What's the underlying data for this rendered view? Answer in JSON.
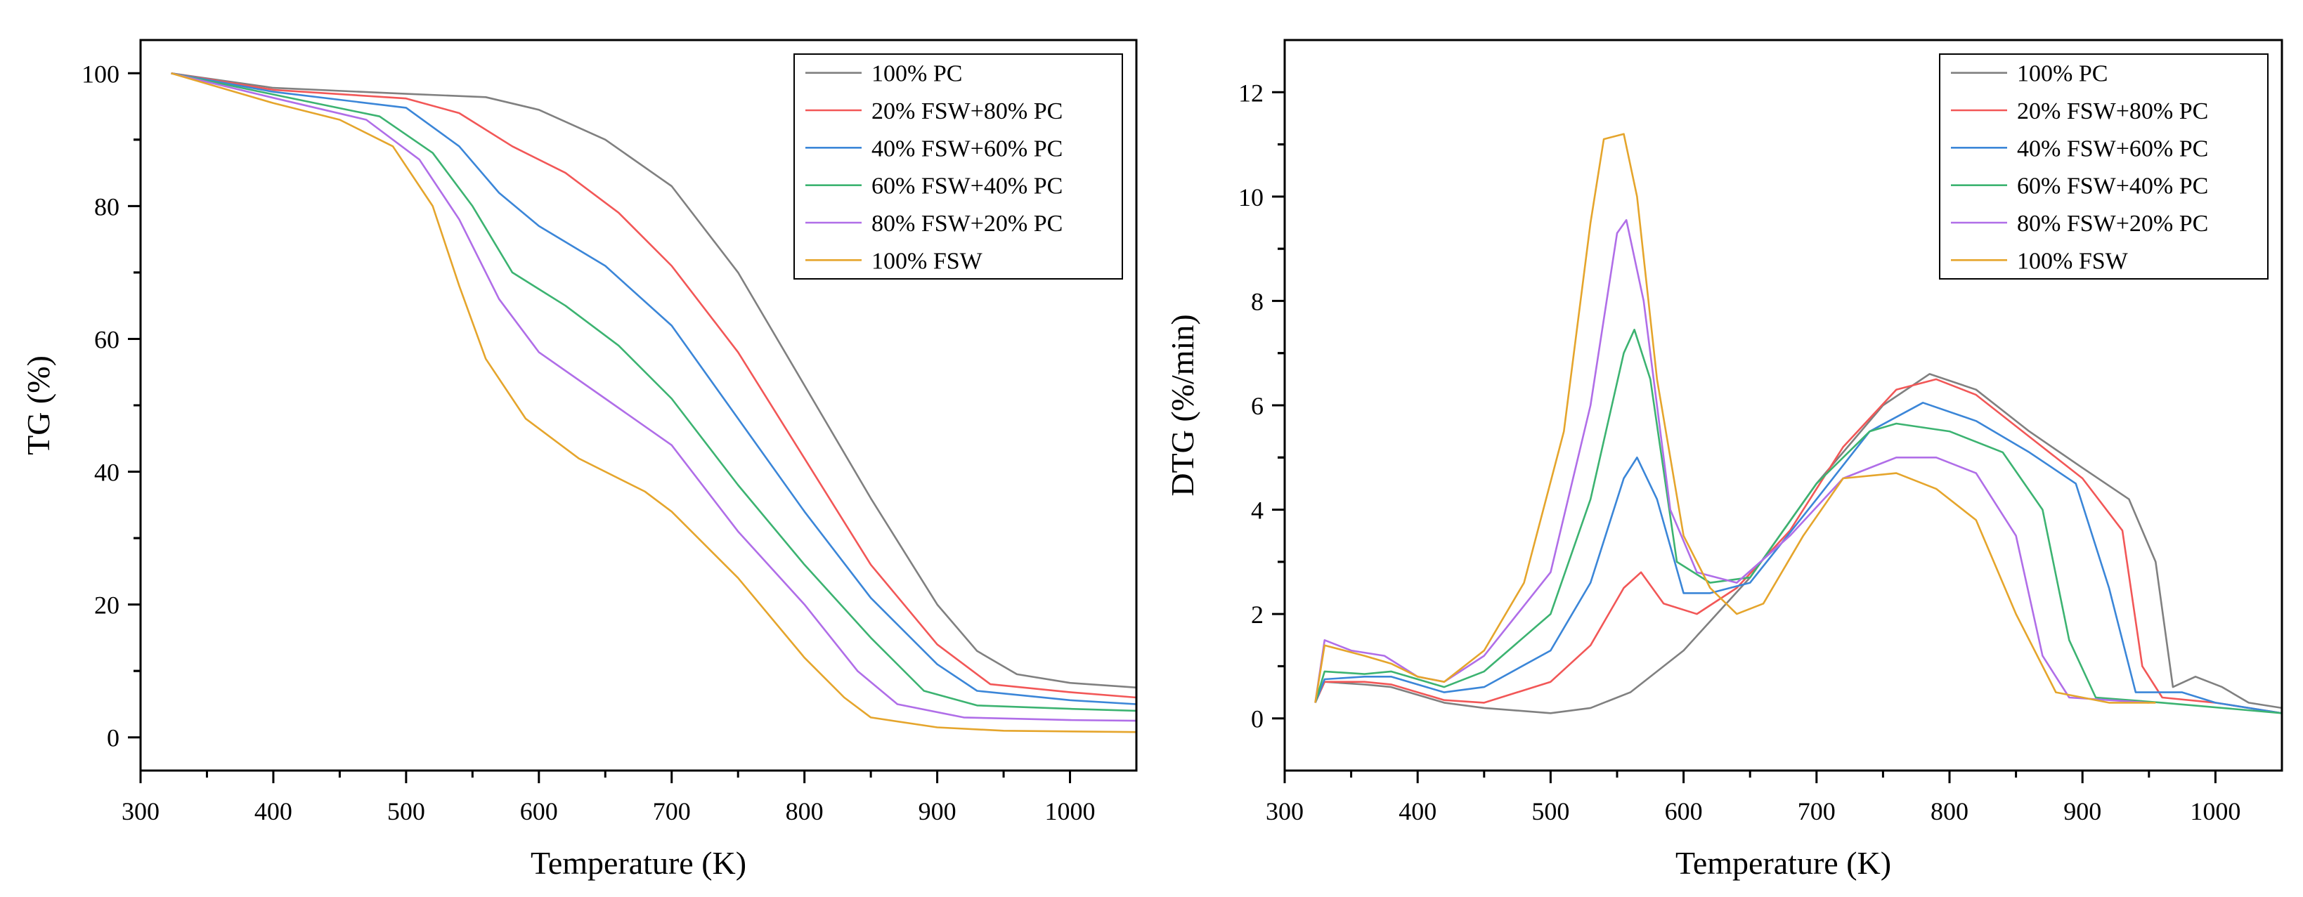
{
  "chart_data": [
    {
      "type": "line",
      "xlabel": "Temperature (K)",
      "ylabel": "TG (%)",
      "xlim": [
        300,
        1050
      ],
      "ylim": [
        -5,
        105
      ],
      "xticks": [
        300,
        400,
        500,
        600,
        700,
        800,
        900,
        1000
      ],
      "yticks": [
        0,
        20,
        40,
        60,
        80,
        100
      ],
      "legend_position": "top-right",
      "series": [
        {
          "name": "100% PC",
          "color": "#808080",
          "points": [
            [
              323,
              100
            ],
            [
              400,
              97.8
            ],
            [
              500,
              96.9
            ],
            [
              560,
              96.4
            ],
            [
              600,
              94.5
            ],
            [
              650,
              90
            ],
            [
              700,
              83
            ],
            [
              750,
              70
            ],
            [
              800,
              53
            ],
            [
              850,
              36
            ],
            [
              900,
              20
            ],
            [
              930,
              13
            ],
            [
              960,
              9.5
            ],
            [
              1000,
              8.2
            ],
            [
              1050,
              7.5
            ]
          ]
        },
        {
          "name": "20% FSW+80% PC",
          "color": "#f25757",
          "points": [
            [
              323,
              100
            ],
            [
              400,
              97.5
            ],
            [
              500,
              96.2
            ],
            [
              540,
              94
            ],
            [
              580,
              89
            ],
            [
              620,
              85
            ],
            [
              660,
              79
            ],
            [
              700,
              71
            ],
            [
              750,
              58
            ],
            [
              800,
              42
            ],
            [
              850,
              26
            ],
            [
              900,
              14
            ],
            [
              940,
              8
            ],
            [
              1000,
              6.8
            ],
            [
              1050,
              6
            ]
          ]
        },
        {
          "name": "40% FSW+60% PC",
          "color": "#3b86d8",
          "points": [
            [
              323,
              100
            ],
            [
              400,
              97.2
            ],
            [
              500,
              94.8
            ],
            [
              540,
              89
            ],
            [
              570,
              82
            ],
            [
              600,
              77
            ],
            [
              650,
              71
            ],
            [
              700,
              62
            ],
            [
              750,
              48
            ],
            [
              800,
              34
            ],
            [
              850,
              21
            ],
            [
              900,
              11
            ],
            [
              930,
              7
            ],
            [
              1000,
              5.6
            ],
            [
              1050,
              5
            ]
          ]
        },
        {
          "name": "60% FSW+40% PC",
          "color": "#3cb371",
          "points": [
            [
              323,
              100
            ],
            [
              400,
              96.8
            ],
            [
              480,
              93.5
            ],
            [
              520,
              88
            ],
            [
              550,
              80
            ],
            [
              580,
              70
            ],
            [
              620,
              65
            ],
            [
              660,
              59
            ],
            [
              700,
              51
            ],
            [
              750,
              38
            ],
            [
              800,
              26
            ],
            [
              850,
              15
            ],
            [
              890,
              7
            ],
            [
              930,
              4.8
            ],
            [
              1000,
              4.3
            ],
            [
              1050,
              4
            ]
          ]
        },
        {
          "name": "80% FSW+20% PC",
          "color": "#b06ee8",
          "points": [
            [
              323,
              100
            ],
            [
              400,
              96.3
            ],
            [
              470,
              93
            ],
            [
              510,
              87
            ],
            [
              540,
              78
            ],
            [
              570,
              66
            ],
            [
              600,
              58
            ],
            [
              650,
              51
            ],
            [
              700,
              44
            ],
            [
              750,
              31
            ],
            [
              800,
              20
            ],
            [
              840,
              10
            ],
            [
              870,
              5
            ],
            [
              920,
              3
            ],
            [
              1000,
              2.6
            ],
            [
              1050,
              2.5
            ]
          ]
        },
        {
          "name": "100% FSW",
          "color": "#e5a52c",
          "points": [
            [
              323,
              100
            ],
            [
              400,
              95.5
            ],
            [
              450,
              93
            ],
            [
              490,
              89
            ],
            [
              520,
              80
            ],
            [
              540,
              68
            ],
            [
              560,
              57
            ],
            [
              590,
              48
            ],
            [
              630,
              42
            ],
            [
              680,
              37
            ],
            [
              700,
              34
            ],
            [
              750,
              24
            ],
            [
              800,
              12
            ],
            [
              830,
              6
            ],
            [
              850,
              3
            ],
            [
              900,
              1.5
            ],
            [
              950,
              1
            ],
            [
              1050,
              0.8
            ]
          ]
        }
      ]
    },
    {
      "type": "line",
      "xlabel": "Temperature (K)",
      "ylabel": "DTG (%/min)",
      "xlim": [
        300,
        1050
      ],
      "ylim": [
        -1,
        13
      ],
      "xticks": [
        300,
        400,
        500,
        600,
        700,
        800,
        900,
        1000
      ],
      "yticks": [
        0,
        2,
        4,
        6,
        8,
        10,
        12
      ],
      "legend_position": "top-right",
      "series": [
        {
          "name": "100% PC",
          "color": "#808080",
          "points": [
            [
              323,
              0.3
            ],
            [
              330,
              0.7
            ],
            [
              360,
              0.65
            ],
            [
              380,
              0.6
            ],
            [
              420,
              0.3
            ],
            [
              450,
              0.2
            ],
            [
              500,
              0.1
            ],
            [
              530,
              0.2
            ],
            [
              560,
              0.5
            ],
            [
              600,
              1.3
            ],
            [
              650,
              2.7
            ],
            [
              700,
              4.5
            ],
            [
              750,
              6.0
            ],
            [
              785,
              6.6
            ],
            [
              820,
              6.3
            ],
            [
              860,
              5.5
            ],
            [
              900,
              4.8
            ],
            [
              935,
              4.2
            ],
            [
              955,
              3.0
            ],
            [
              968,
              0.6
            ],
            [
              985,
              0.8
            ],
            [
              1005,
              0.6
            ],
            [
              1025,
              0.3
            ],
            [
              1050,
              0.2
            ]
          ]
        },
        {
          "name": "20% FSW+80% PC",
          "color": "#f25757",
          "points": [
            [
              323,
              0.3
            ],
            [
              330,
              0.7
            ],
            [
              360,
              0.7
            ],
            [
              380,
              0.65
            ],
            [
              420,
              0.35
            ],
            [
              450,
              0.3
            ],
            [
              500,
              0.7
            ],
            [
              530,
              1.4
            ],
            [
              555,
              2.5
            ],
            [
              568,
              2.8
            ],
            [
              585,
              2.2
            ],
            [
              610,
              2.0
            ],
            [
              640,
              2.5
            ],
            [
              680,
              3.6
            ],
            [
              720,
              5.2
            ],
            [
              760,
              6.3
            ],
            [
              790,
              6.5
            ],
            [
              820,
              6.2
            ],
            [
              860,
              5.4
            ],
            [
              900,
              4.6
            ],
            [
              930,
              3.6
            ],
            [
              945,
              1.0
            ],
            [
              960,
              0.4
            ],
            [
              1000,
              0.3
            ],
            [
              1050,
              0.1
            ]
          ]
        },
        {
          "name": "40% FSW+60% PC",
          "color": "#3b86d8",
          "points": [
            [
              323,
              0.3
            ],
            [
              330,
              0.75
            ],
            [
              360,
              0.8
            ],
            [
              380,
              0.8
            ],
            [
              420,
              0.5
            ],
            [
              450,
              0.6
            ],
            [
              500,
              1.3
            ],
            [
              530,
              2.6
            ],
            [
              555,
              4.6
            ],
            [
              565,
              5.0
            ],
            [
              580,
              4.2
            ],
            [
              600,
              2.4
            ],
            [
              620,
              2.4
            ],
            [
              650,
              2.6
            ],
            [
              700,
              4.2
            ],
            [
              740,
              5.5
            ],
            [
              780,
              6.05
            ],
            [
              820,
              5.7
            ],
            [
              860,
              5.1
            ],
            [
              895,
              4.5
            ],
            [
              920,
              2.5
            ],
            [
              940,
              0.5
            ],
            [
              975,
              0.5
            ],
            [
              1000,
              0.3
            ],
            [
              1050,
              0.1
            ]
          ]
        },
        {
          "name": "60% FSW+40% PC",
          "color": "#3cb371",
          "points": [
            [
              323,
              0.3
            ],
            [
              330,
              0.9
            ],
            [
              360,
              0.85
            ],
            [
              380,
              0.9
            ],
            [
              420,
              0.6
            ],
            [
              450,
              0.9
            ],
            [
              500,
              2.0
            ],
            [
              530,
              4.2
            ],
            [
              555,
              7.0
            ],
            [
              563,
              7.45
            ],
            [
              575,
              6.5
            ],
            [
              595,
              3.0
            ],
            [
              620,
              2.6
            ],
            [
              650,
              2.7
            ],
            [
              700,
              4.5
            ],
            [
              740,
              5.5
            ],
            [
              760,
              5.65
            ],
            [
              800,
              5.5
            ],
            [
              840,
              5.1
            ],
            [
              870,
              4.0
            ],
            [
              890,
              1.5
            ],
            [
              910,
              0.4
            ],
            [
              960,
              0.3
            ],
            [
              1050,
              0.1
            ]
          ]
        },
        {
          "name": "80% FSW+20% PC",
          "color": "#b06ee8",
          "points": [
            [
              323,
              0.3
            ],
            [
              330,
              1.5
            ],
            [
              350,
              1.3
            ],
            [
              375,
              1.2
            ],
            [
              400,
              0.8
            ],
            [
              420,
              0.7
            ],
            [
              450,
              1.2
            ],
            [
              500,
              2.8
            ],
            [
              530,
              6.0
            ],
            [
              550,
              9.3
            ],
            [
              557,
              9.55
            ],
            [
              570,
              8.0
            ],
            [
              590,
              4.0
            ],
            [
              610,
              2.8
            ],
            [
              640,
              2.6
            ],
            [
              680,
              3.5
            ],
            [
              720,
              4.6
            ],
            [
              760,
              5.0
            ],
            [
              790,
              5.0
            ],
            [
              820,
              4.7
            ],
            [
              850,
              3.5
            ],
            [
              870,
              1.2
            ],
            [
              890,
              0.4
            ],
            [
              950,
              0.3
            ]
          ]
        },
        {
          "name": "100% FSW",
          "color": "#e5a52c",
          "points": [
            [
              323,
              0.3
            ],
            [
              330,
              1.4
            ],
            [
              360,
              1.2
            ],
            [
              380,
              1.05
            ],
            [
              400,
              0.8
            ],
            [
              420,
              0.7
            ],
            [
              450,
              1.3
            ],
            [
              480,
              2.6
            ],
            [
              510,
              5.5
            ],
            [
              530,
              9.5
            ],
            [
              540,
              11.1
            ],
            [
              555,
              11.2
            ],
            [
              565,
              10.0
            ],
            [
              580,
              6.5
            ],
            [
              600,
              3.5
            ],
            [
              620,
              2.5
            ],
            [
              640,
              2.0
            ],
            [
              660,
              2.2
            ],
            [
              690,
              3.5
            ],
            [
              720,
              4.6
            ],
            [
              760,
              4.7
            ],
            [
              790,
              4.4
            ],
            [
              820,
              3.8
            ],
            [
              850,
              2.0
            ],
            [
              880,
              0.5
            ],
            [
              920,
              0.3
            ],
            [
              955,
              0.3
            ]
          ]
        }
      ]
    }
  ]
}
